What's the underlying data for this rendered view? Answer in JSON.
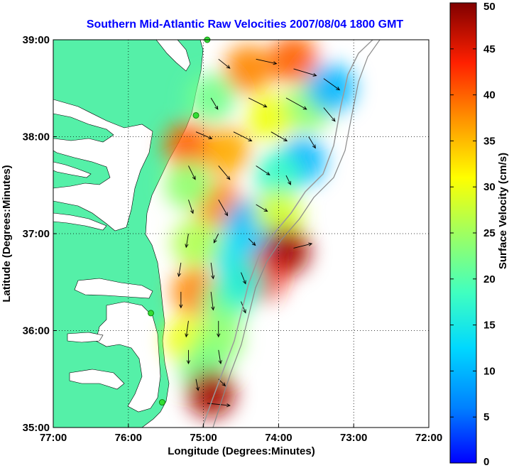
{
  "chart_data": {
    "type": "heatmap",
    "title": "Southern Mid-Atlantic Raw Velocities 2007/08/04 1800 GMT",
    "xlabel": "Longitude (Degrees:Minutes)",
    "ylabel": "Latitude (Degrees:Minutes)",
    "colorbar_label": "Surface Velocity (cm/s)",
    "x_ticks": [
      {
        "value": -77,
        "label": "77:00"
      },
      {
        "value": -76,
        "label": "76:00"
      },
      {
        "value": -75,
        "label": "75:00"
      },
      {
        "value": -74,
        "label": "74:00"
      },
      {
        "value": -73,
        "label": "73:00"
      },
      {
        "value": -72,
        "label": "72:00"
      }
    ],
    "y_ticks": [
      {
        "value": 35,
        "label": "35:00"
      },
      {
        "value": 36,
        "label": "36:00"
      },
      {
        "value": 37,
        "label": "37:00"
      },
      {
        "value": 38,
        "label": "38:00"
      },
      {
        "value": 39,
        "label": "39:00"
      }
    ],
    "xlim": [
      -77,
      -72
    ],
    "ylim": [
      35,
      39
    ],
    "colorbar_ticks": [
      0,
      5,
      10,
      15,
      20,
      25,
      30,
      35,
      40,
      45,
      50
    ],
    "colorbar_range": [
      0,
      50
    ],
    "grid": true,
    "colormap": "jet",
    "land_color": "#55f0a8",
    "station_color": "#33dd33",
    "stations": [
      {
        "lon": -74.95,
        "lat": 39.0
      },
      {
        "lon": -75.1,
        "lat": 38.22
      },
      {
        "lon": -75.7,
        "lat": 36.18
      },
      {
        "lon": -75.55,
        "lat": 35.26
      }
    ],
    "velocity_regions": [
      {
        "lon": -74.4,
        "lat": 38.7,
        "speed": 38
      },
      {
        "lon": -73.8,
        "lat": 38.8,
        "speed": 40
      },
      {
        "lon": -74.9,
        "lat": 38.4,
        "speed": 22
      },
      {
        "lon": -75.2,
        "lat": 37.9,
        "speed": 40
      },
      {
        "lon": -74.7,
        "lat": 37.85,
        "speed": 36
      },
      {
        "lon": -74.1,
        "lat": 38.2,
        "speed": 30
      },
      {
        "lon": -73.6,
        "lat": 38.3,
        "speed": 24
      },
      {
        "lon": -73.3,
        "lat": 38.5,
        "speed": 10
      },
      {
        "lon": -73.7,
        "lat": 37.75,
        "speed": 10
      },
      {
        "lon": -74.0,
        "lat": 37.6,
        "speed": 18
      },
      {
        "lon": -74.8,
        "lat": 37.3,
        "speed": 38
      },
      {
        "lon": -75.2,
        "lat": 37.5,
        "speed": 24
      },
      {
        "lon": -74.4,
        "lat": 37.1,
        "speed": 10
      },
      {
        "lon": -74.0,
        "lat": 37.2,
        "speed": 28
      },
      {
        "lon": -74.6,
        "lat": 36.8,
        "speed": 14
      },
      {
        "lon": -75.1,
        "lat": 36.9,
        "speed": 26
      },
      {
        "lon": -74.2,
        "lat": 36.8,
        "speed": 12
      },
      {
        "lon": -73.9,
        "lat": 36.82,
        "speed": 48
      },
      {
        "lon": -74.23,
        "lat": 36.55,
        "speed": 44
      },
      {
        "lon": -75.1,
        "lat": 36.4,
        "speed": 38
      },
      {
        "lon": -74.7,
        "lat": 36.3,
        "speed": 22
      },
      {
        "lon": -74.5,
        "lat": 36.5,
        "speed": 16
      },
      {
        "lon": -75.2,
        "lat": 35.9,
        "speed": 30
      },
      {
        "lon": -74.8,
        "lat": 35.9,
        "speed": 24
      },
      {
        "lon": -75.0,
        "lat": 35.6,
        "speed": 22
      },
      {
        "lon": -74.9,
        "lat": 35.35,
        "speed": 48
      }
    ],
    "vectors": [
      {
        "lon": -74.8,
        "lat": 38.8,
        "u": 10,
        "v": -8
      },
      {
        "lon": -74.3,
        "lat": 38.8,
        "u": 18,
        "v": -4
      },
      {
        "lon": -73.8,
        "lat": 38.7,
        "u": 20,
        "v": -6
      },
      {
        "lon": -73.4,
        "lat": 38.6,
        "u": 14,
        "v": -10
      },
      {
        "lon": -74.9,
        "lat": 38.4,
        "u": 6,
        "v": -10
      },
      {
        "lon": -74.4,
        "lat": 38.4,
        "u": 16,
        "v": -8
      },
      {
        "lon": -73.9,
        "lat": 38.4,
        "u": 18,
        "v": -10
      },
      {
        "lon": -73.4,
        "lat": 38.3,
        "u": 10,
        "v": -12
      },
      {
        "lon": -75.1,
        "lat": 38.05,
        "u": 14,
        "v": -6
      },
      {
        "lon": -74.6,
        "lat": 38.05,
        "u": 16,
        "v": -8
      },
      {
        "lon": -74.1,
        "lat": 38.05,
        "u": 14,
        "v": -8
      },
      {
        "lon": -73.6,
        "lat": 38.0,
        "u": 6,
        "v": -10
      },
      {
        "lon": -75.2,
        "lat": 37.7,
        "u": 6,
        "v": -12
      },
      {
        "lon": -74.8,
        "lat": 37.7,
        "u": 10,
        "v": -12
      },
      {
        "lon": -74.3,
        "lat": 37.7,
        "u": 12,
        "v": -8
      },
      {
        "lon": -73.9,
        "lat": 37.6,
        "u": 4,
        "v": -8
      },
      {
        "lon": -75.2,
        "lat": 37.35,
        "u": 4,
        "v": -12
      },
      {
        "lon": -74.8,
        "lat": 37.35,
        "u": 8,
        "v": -14
      },
      {
        "lon": -74.3,
        "lat": 37.3,
        "u": 10,
        "v": -6
      },
      {
        "lon": -75.2,
        "lat": 37.0,
        "u": -2,
        "v": -12
      },
      {
        "lon": -74.8,
        "lat": 37.0,
        "u": -4,
        "v": -8
      },
      {
        "lon": -74.4,
        "lat": 36.95,
        "u": 6,
        "v": -6
      },
      {
        "lon": -75.3,
        "lat": 36.7,
        "u": -2,
        "v": -12
      },
      {
        "lon": -74.9,
        "lat": 36.7,
        "u": 2,
        "v": -14
      },
      {
        "lon": -74.5,
        "lat": 36.6,
        "u": 4,
        "v": -10
      },
      {
        "lon": -75.3,
        "lat": 36.4,
        "u": 0,
        "v": -14
      },
      {
        "lon": -74.9,
        "lat": 36.4,
        "u": 2,
        "v": -16
      },
      {
        "lon": -74.5,
        "lat": 36.3,
        "u": 4,
        "v": -10
      },
      {
        "lon": -75.2,
        "lat": 36.1,
        "u": -2,
        "v": -14
      },
      {
        "lon": -74.8,
        "lat": 36.1,
        "u": 0,
        "v": -14
      },
      {
        "lon": -75.2,
        "lat": 35.8,
        "u": 0,
        "v": -12
      },
      {
        "lon": -74.8,
        "lat": 35.8,
        "u": 2,
        "v": -12
      },
      {
        "lon": -75.1,
        "lat": 35.5,
        "u": 2,
        "v": -10
      },
      {
        "lon": -74.8,
        "lat": 35.5,
        "u": 6,
        "v": -6
      },
      {
        "lon": -74.95,
        "lat": 35.25,
        "u": 20,
        "v": -2
      },
      {
        "lon": -73.8,
        "lat": 36.85,
        "u": 16,
        "v": 4
      }
    ]
  }
}
